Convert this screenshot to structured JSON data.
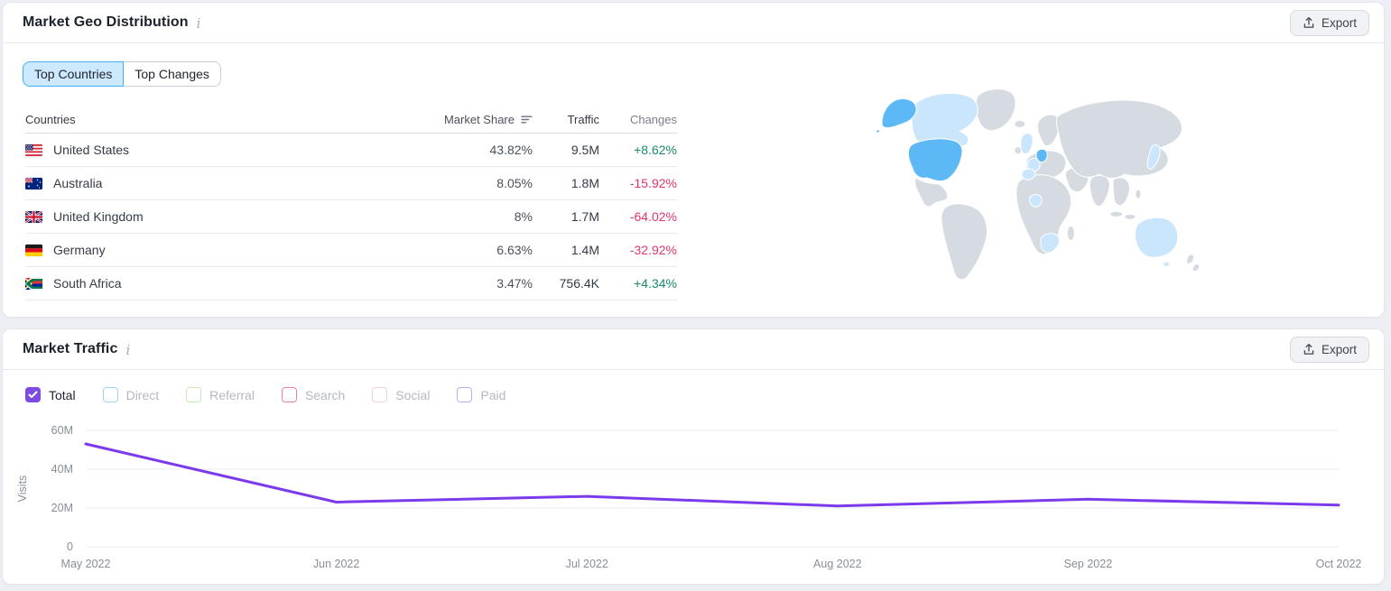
{
  "colors": {
    "page_bg": "#edeff4",
    "card_border": "#e4e7ec",
    "accent_purple": "#7c3aed",
    "positive": "#178a6f",
    "negative": "#e0356b",
    "tab_selected_bg": "#cce9ff",
    "tab_selected_border": "#41b0f7",
    "map_base": "#d6dae1",
    "map_primary": "#5cb9f5",
    "map_secondary": "#cae6fc"
  },
  "geo_card": {
    "title": "Market Geo Distribution",
    "export_label": "Export",
    "tabs": [
      {
        "label": "Top Countries",
        "selected": true
      },
      {
        "label": "Top Changes",
        "selected": false
      }
    ],
    "table": {
      "headers": {
        "countries": "Countries",
        "market_share": "Market Share",
        "traffic": "Traffic",
        "changes": "Changes"
      },
      "sorted_by": "market_share",
      "rows": [
        {
          "country": "United States",
          "flag": "us",
          "market_share": "43.82%",
          "traffic": "9.5M",
          "change": "+8.62%",
          "change_dir": "up"
        },
        {
          "country": "Australia",
          "flag": "au",
          "market_share": "8.05%",
          "traffic": "1.8M",
          "change": "-15.92%",
          "change_dir": "down"
        },
        {
          "country": "United Kingdom",
          "flag": "gb",
          "market_share": "8%",
          "traffic": "1.7M",
          "change": "-64.02%",
          "change_dir": "down"
        },
        {
          "country": "Germany",
          "flag": "de",
          "market_share": "6.63%",
          "traffic": "1.4M",
          "change": "-32.92%",
          "change_dir": "down"
        },
        {
          "country": "South Africa",
          "flag": "za",
          "market_share": "3.47%",
          "traffic": "756.4K",
          "change": "+4.34%",
          "change_dir": "up"
        }
      ]
    },
    "map": {
      "highlighted_primary": [
        "United States"
      ],
      "highlighted_secondary": [
        "Canada",
        "Australia",
        "United Kingdom",
        "Germany",
        "France",
        "Spain",
        "South Africa",
        "Nigeria",
        "Japan"
      ]
    }
  },
  "traffic_card": {
    "title": "Market Traffic",
    "export_label": "Export",
    "legend": [
      {
        "label": "Total",
        "checked": true,
        "color": "#7d4be0"
      },
      {
        "label": "Direct",
        "checked": false,
        "color": "#9fd3f8"
      },
      {
        "label": "Referral",
        "checked": false,
        "color": "#c8e9bd"
      },
      {
        "label": "Search",
        "checked": false,
        "color": "#ef7e9e"
      },
      {
        "label": "Social",
        "checked": false,
        "color": "#f8cdd4"
      },
      {
        "label": "Paid",
        "checked": false,
        "color": "#c3a7f0"
      }
    ]
  },
  "chart_data": {
    "type": "line",
    "title": "Market Traffic — Total visits",
    "x": [
      "May 2022",
      "Jun 2022",
      "Jul 2022",
      "Aug 2022",
      "Sep 2022",
      "Oct 2022"
    ],
    "series": [
      {
        "name": "Total",
        "color": "#7c3aed",
        "values": [
          53,
          23,
          26,
          21,
          24.5,
          21.5
        ]
      }
    ],
    "unit": "M",
    "ylabel": "Visits",
    "ylim": [
      0,
      60
    ],
    "yticks": [
      0,
      20,
      40,
      60
    ],
    "ytick_labels": [
      "0",
      "20M",
      "40M",
      "60M"
    ],
    "grid": true,
    "legend_position": "none"
  }
}
